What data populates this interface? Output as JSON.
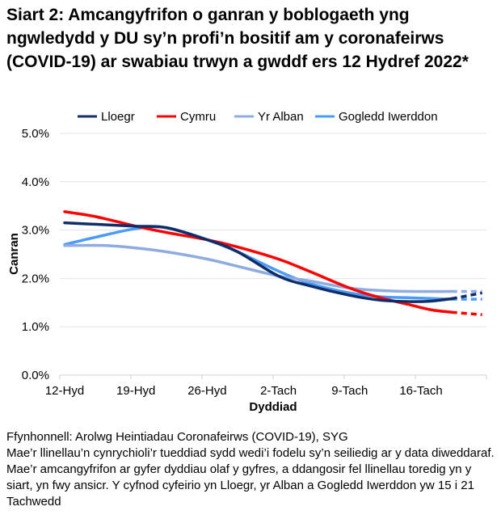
{
  "chart_data": {
    "type": "line",
    "title": "Siart 2: Amcangyfrifon o ganran y boblogaeth yng ngwledydd y DU sy’n profi’n bositif am y coronafeirws (COVID-19) ar swabiau trwyn a gwddf ers 12 Hydref 2022*",
    "xlabel": "Dyddiad",
    "ylabel": "Canran",
    "ylim": [
      0,
      5
    ],
    "yticks": [
      "0.0%",
      "1.0%",
      "2.0%",
      "3.0%",
      "4.0%",
      "5.0%"
    ],
    "xticks": [
      {
        "label": "12-Hyd",
        "day": 0
      },
      {
        "label": "19-Hyd",
        "day": 7
      },
      {
        "label": "26-Hyd",
        "day": 14
      },
      {
        "label": "2-Tach",
        "day": 21
      },
      {
        "label": "9-Tach",
        "day": 28
      },
      {
        "label": "16-Tach",
        "day": 35
      }
    ],
    "grid": true,
    "legend": "top",
    "series": [
      {
        "name": "Lloegr",
        "color": "#0f2d69",
        "points": [
          [
            0,
            3.15
          ],
          [
            3,
            3.12
          ],
          [
            7,
            3.08
          ],
          [
            10,
            3.05
          ],
          [
            14,
            2.8
          ],
          [
            17,
            2.55
          ],
          [
            21,
            2.05
          ],
          [
            24,
            1.85
          ],
          [
            28,
            1.65
          ],
          [
            31,
            1.55
          ],
          [
            34,
            1.52
          ],
          [
            36,
            1.53
          ],
          [
            38,
            1.58
          ]
        ],
        "modelled": [
          [
            38,
            1.58
          ],
          [
            41,
            1.7
          ]
        ]
      },
      {
        "name": "Cymru",
        "color": "#ff0000",
        "points": [
          [
            0,
            3.38
          ],
          [
            3,
            3.28
          ],
          [
            7,
            3.08
          ],
          [
            10,
            2.95
          ],
          [
            14,
            2.8
          ],
          [
            17,
            2.65
          ],
          [
            21,
            2.4
          ],
          [
            24,
            2.15
          ],
          [
            28,
            1.8
          ],
          [
            31,
            1.6
          ],
          [
            34,
            1.45
          ],
          [
            36,
            1.35
          ],
          [
            38,
            1.3
          ]
        ],
        "modelled": [
          [
            38,
            1.3
          ],
          [
            41,
            1.25
          ]
        ]
      },
      {
        "name": "Yr Alban",
        "color": "#8eabe2",
        "points": [
          [
            0,
            2.68
          ],
          [
            4,
            2.68
          ],
          [
            7,
            2.63
          ],
          [
            10,
            2.55
          ],
          [
            14,
            2.4
          ],
          [
            17,
            2.25
          ],
          [
            21,
            2.05
          ],
          [
            24,
            1.95
          ],
          [
            28,
            1.8
          ],
          [
            31,
            1.75
          ],
          [
            34,
            1.73
          ],
          [
            38,
            1.73
          ]
        ],
        "modelled": [
          [
            38,
            1.73
          ],
          [
            41,
            1.73
          ]
        ]
      },
      {
        "name": "Gogledd Iwerddon",
        "color": "#4a9bff",
        "points": [
          [
            0,
            2.7
          ],
          [
            3,
            2.85
          ],
          [
            7,
            3.03
          ],
          [
            10,
            3.05
          ],
          [
            14,
            2.8
          ],
          [
            17,
            2.55
          ],
          [
            21,
            2.15
          ],
          [
            24,
            1.9
          ],
          [
            28,
            1.7
          ],
          [
            31,
            1.62
          ],
          [
            34,
            1.6
          ],
          [
            38,
            1.57
          ]
        ],
        "modelled": [
          [
            38,
            1.57
          ],
          [
            41,
            1.57
          ]
        ]
      }
    ]
  },
  "notes": [
    "Ffynhonnell: Arolwg Heintiadau Coronafeirws (COVID-19), SYG",
    "Mae’r llinellau’n cynrychioli’r tueddiad sydd wedi’i fodelu sy’n seiliedig ar y data diweddaraf. Mae’r amcangyfrifon ar gyfer dyddiau olaf y gyfres, a ddangosir fel llinellau toredig yn y siart, yn fwy ansicr. Y cyfnod cyfeirio yn Lloegr, yr Alban a Gogledd Iwerddon yw 15 i 21 Tachwedd"
  ]
}
